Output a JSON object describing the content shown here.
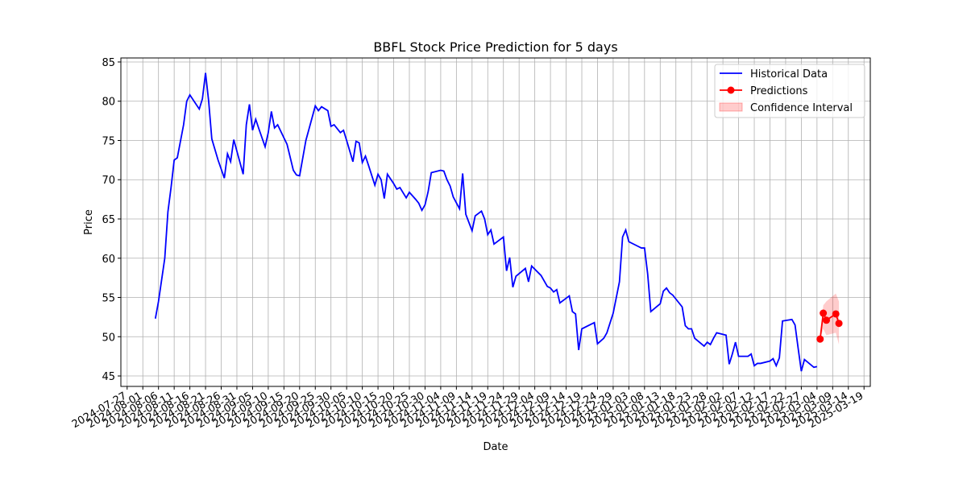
{
  "chart_data": {
    "type": "line",
    "title": "BBFL Stock Price Prediction for 5 days",
    "xlabel": "Date",
    "ylabel": "Price",
    "xlim": [
      "2024-07-25",
      "2025-03-21"
    ],
    "xticks": [
      "2024-07-27",
      "2024-08-01",
      "2024-08-06",
      "2024-08-11",
      "2024-08-16",
      "2024-08-21",
      "2024-08-26",
      "2024-08-31",
      "2024-09-05",
      "2024-09-10",
      "2024-09-15",
      "2024-09-20",
      "2024-09-25",
      "2024-09-30",
      "2024-10-05",
      "2024-10-10",
      "2024-10-15",
      "2024-10-20",
      "2024-10-25",
      "2024-10-30",
      "2024-11-04",
      "2024-11-09",
      "2024-11-14",
      "2024-11-19",
      "2024-11-24",
      "2024-11-29",
      "2024-12-04",
      "2024-12-09",
      "2024-12-14",
      "2024-12-19",
      "2024-12-24",
      "2024-12-29",
      "2025-01-03",
      "2025-01-08",
      "2025-01-13",
      "2025-01-18",
      "2025-01-23",
      "2025-01-28",
      "2025-02-02",
      "2025-02-07",
      "2025-02-12",
      "2025-02-17",
      "2025-02-22",
      "2025-02-27",
      "2025-03-04",
      "2025-03-09",
      "2025-03-14",
      "2025-03-19"
    ],
    "ylim": [
      43.67,
      85.51
    ],
    "yticks": [
      45,
      50,
      55,
      60,
      65,
      70,
      75,
      80,
      85
    ],
    "grid": true,
    "legend": "upper right",
    "series": [
      {
        "name": "Historical Data",
        "color": "#0000ff",
        "marker": false,
        "x": [
          "2024-08-05",
          "2024-08-06",
          "2024-08-08",
          "2024-08-09",
          "2024-08-10",
          "2024-08-11",
          "2024-08-12",
          "2024-08-14",
          "2024-08-15",
          "2024-08-16",
          "2024-08-19",
          "2024-08-20",
          "2024-08-21",
          "2024-08-22",
          "2024-08-23",
          "2024-08-25",
          "2024-08-27",
          "2024-08-28",
          "2024-08-29",
          "2024-08-30",
          "2024-09-02",
          "2024-09-03",
          "2024-09-04",
          "2024-09-05",
          "2024-09-06",
          "2024-09-07",
          "2024-09-09",
          "2024-09-10",
          "2024-09-11",
          "2024-09-12",
          "2024-09-13",
          "2024-09-16",
          "2024-09-18",
          "2024-09-19",
          "2024-09-20",
          "2024-09-22",
          "2024-09-25",
          "2024-09-26",
          "2024-09-27",
          "2024-09-29",
          "2024-09-30",
          "2024-10-01",
          "2024-10-03",
          "2024-10-04",
          "2024-10-05",
          "2024-10-07",
          "2024-10-08",
          "2024-10-09",
          "2024-10-10",
          "2024-10-11",
          "2024-10-12",
          "2024-10-14",
          "2024-10-15",
          "2024-10-16",
          "2024-10-17",
          "2024-10-18",
          "2024-10-20",
          "2024-10-21",
          "2024-10-22",
          "2024-10-24",
          "2024-10-25",
          "2024-10-27",
          "2024-10-28",
          "2024-10-29",
          "2024-10-30",
          "2024-10-31",
          "2024-11-01",
          "2024-11-04",
          "2024-11-05",
          "2024-11-06",
          "2024-11-07",
          "2024-11-08",
          "2024-11-10",
          "2024-11-11",
          "2024-11-12",
          "2024-11-14",
          "2024-11-15",
          "2024-11-17",
          "2024-11-18",
          "2024-11-19",
          "2024-11-20",
          "2024-11-21",
          "2024-11-24",
          "2024-11-25",
          "2024-11-26",
          "2024-11-27",
          "2024-11-28",
          "2024-12-01",
          "2024-12-02",
          "2024-12-03",
          "2024-12-06",
          "2024-12-08",
          "2024-12-09",
          "2024-12-10",
          "2024-12-11",
          "2024-12-12",
          "2024-12-15",
          "2024-12-16",
          "2024-12-17",
          "2024-12-18",
          "2024-12-19",
          "2024-12-23",
          "2024-12-24",
          "2024-12-26",
          "2024-12-27",
          "2024-12-29",
          "2024-12-30",
          "2024-12-31",
          "2025-01-01",
          "2025-01-02",
          "2025-01-03",
          "2025-01-06",
          "2025-01-07",
          "2025-01-08",
          "2025-01-09",
          "2025-01-10",
          "2025-01-13",
          "2025-01-14",
          "2025-01-15",
          "2025-01-16",
          "2025-01-17",
          "2025-01-20",
          "2025-01-21",
          "2025-01-22",
          "2025-01-23",
          "2025-01-24",
          "2025-01-27",
          "2025-01-28",
          "2025-01-29",
          "2025-01-30",
          "2025-01-31",
          "2025-02-03",
          "2025-02-04",
          "2025-02-05",
          "2025-02-06",
          "2025-02-07",
          "2025-02-10",
          "2025-02-11",
          "2025-02-12",
          "2025-02-13",
          "2025-02-14",
          "2025-02-17",
          "2025-02-18",
          "2025-02-19",
          "2025-02-20",
          "2025-02-21",
          "2025-02-24",
          "2025-02-25",
          "2025-02-26",
          "2025-02-27",
          "2025-02-28",
          "2025-03-03",
          "2025-03-04"
        ],
        "values": [
          52.3,
          54.5,
          60,
          65.9,
          69,
          72.5,
          72.8,
          77,
          80,
          80.8,
          79,
          80.3,
          83.6,
          80,
          75.2,
          72.5,
          70.2,
          73.3,
          72.3,
          75.1,
          70.7,
          77,
          79.6,
          76.3,
          77.7,
          76.5,
          74.2,
          76,
          78.7,
          76.6,
          77,
          74.5,
          71.2,
          70.6,
          70.5,
          75,
          79.4,
          78.8,
          79.3,
          78.8,
          76.8,
          77,
          76,
          76.3,
          75,
          72.3,
          74.9,
          74.7,
          72.2,
          73,
          71.8,
          69.3,
          70.7,
          70,
          67.6,
          70.7,
          69.5,
          68.8,
          69,
          67.7,
          68.4,
          67.5,
          67,
          66.1,
          66.8,
          68.5,
          70.9,
          71.2,
          71.1,
          70,
          69.2,
          67.8,
          66.3,
          70.8,
          65.6,
          63.5,
          65.4,
          66,
          65,
          63,
          63.6,
          61.8,
          62.7,
          58.4,
          60.1,
          56.3,
          57.7,
          58.7,
          57,
          59,
          57.8,
          56.4,
          56.2,
          55.7,
          56,
          54.3,
          55.2,
          53.2,
          52.9,
          48.3,
          51,
          51.8,
          49.1,
          49.8,
          50.5,
          53,
          55,
          57,
          62.7,
          63.6,
          62.1,
          61.5,
          61.3,
          61.3,
          58,
          53.2,
          54.2,
          55.8,
          56.2,
          55.6,
          55.3,
          53.8,
          51.4,
          51,
          51,
          49.8,
          48.8,
          49.3,
          49,
          49.8,
          50.5,
          50.2,
          46.5,
          47.8,
          49.3,
          47.5,
          47.5,
          47.8,
          46.3,
          46.6,
          46.6,
          46.9,
          47.2,
          46.3,
          47.3,
          52,
          52.2,
          51.5,
          48.5,
          45.6,
          47.1,
          46.1,
          46.2
        ]
      },
      {
        "name": "Predictions",
        "color": "#ff0000",
        "marker": true,
        "x": [
          "2025-03-05",
          "2025-03-06",
          "2025-03-07",
          "2025-03-10",
          "2025-03-11"
        ],
        "values": [
          49.7,
          53.0,
          52.1,
          52.9,
          51.7
        ]
      }
    ],
    "confidence_interval": {
      "name": "Confidence Interval",
      "color": "#ff0000",
      "x": [
        "2025-03-05",
        "2025-03-06",
        "2025-03-07",
        "2025-03-10",
        "2025-03-11"
      ],
      "lower": [
        49.7,
        51.0,
        50.2,
        50.5,
        49.0
      ],
      "upper": [
        49.7,
        54.0,
        54.5,
        55.5,
        54.5
      ]
    }
  }
}
